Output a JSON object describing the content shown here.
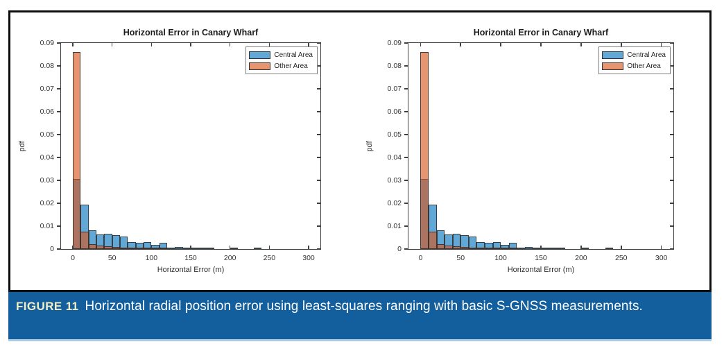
{
  "caption": {
    "label": "FIGURE 11",
    "text": "Horizontal radial position error using least-squares ranging with basic S-GNSS measurements."
  },
  "colors": {
    "caption_bg": "#135E9C",
    "caption_label": "#F1ECC6",
    "caption_underline": "#AECBE3",
    "frame_border": "#0D0D0D",
    "central_fill": "rgba(0,114,189,0.62)",
    "other_fill": "rgba(217,83,25,0.62)",
    "bar_edge": "#2D2D2D",
    "axis": "#3F3F3F"
  },
  "chart_data": [
    {
      "type": "bar",
      "subtype": "overlaid-histogram",
      "title": "Horizontal Error in Canary Wharf",
      "xlabel": "Horizontal Error (m)",
      "ylabel": "pdf",
      "xlim": [
        -15,
        315
      ],
      "ylim": [
        0,
        0.09
      ],
      "xticks": [
        0,
        50,
        100,
        150,
        200,
        250,
        300
      ],
      "yticks": [
        0,
        0.01,
        0.02,
        0.03,
        0.04,
        0.05,
        0.06,
        0.07,
        0.08,
        0.09
      ],
      "bin_width": 10,
      "bin_start": 0,
      "grid": false,
      "legend_position": "top-right",
      "series": [
        {
          "name": "Central Area",
          "values": [
            0.0305,
            0.0193,
            0.0081,
            0.0063,
            0.0068,
            0.0061,
            0.0055,
            0.003,
            0.0026,
            0.003,
            0.0019,
            0.0027,
            0.0006,
            0.001,
            0.0003,
            0.0005,
            0.0003,
            0.0002,
            0,
            0,
            0.0004,
            0,
            0,
            0.0003
          ]
        },
        {
          "name": "Other Area",
          "values": [
            0.0862,
            0.0076,
            0.0022,
            0.0014,
            0.0011,
            0.001,
            0.0004,
            0.0002,
            0.0002,
            0.0002,
            0.0001,
            0.0001,
            0,
            0,
            0,
            0,
            0,
            0,
            0,
            0,
            0,
            0,
            0,
            0
          ]
        }
      ]
    },
    {
      "type": "bar",
      "subtype": "overlaid-histogram",
      "title": "Horizontal Error in Canary Wharf",
      "xlabel": "Horizontal Error (m)",
      "ylabel": "pdf",
      "xlim": [
        -15,
        315
      ],
      "ylim": [
        0,
        0.09
      ],
      "xticks": [
        0,
        50,
        100,
        150,
        200,
        250,
        300
      ],
      "yticks": [
        0,
        0.01,
        0.02,
        0.03,
        0.04,
        0.05,
        0.06,
        0.07,
        0.08,
        0.09
      ],
      "bin_width": 10,
      "bin_start": 0,
      "grid": false,
      "legend_position": "top-right",
      "series": [
        {
          "name": "Central Area",
          "values": [
            0.0305,
            0.0193,
            0.0081,
            0.0063,
            0.0068,
            0.0061,
            0.0055,
            0.003,
            0.0026,
            0.003,
            0.0019,
            0.0027,
            0.0006,
            0.001,
            0.0003,
            0.0005,
            0.0003,
            0.0002,
            0,
            0,
            0.0004,
            0,
            0,
            0.0003
          ]
        },
        {
          "name": "Other Area",
          "values": [
            0.0862,
            0.0076,
            0.0022,
            0.0014,
            0.0011,
            0.001,
            0.0004,
            0.0002,
            0.0002,
            0.0002,
            0.0001,
            0.0001,
            0,
            0,
            0,
            0,
            0,
            0,
            0,
            0,
            0,
            0,
            0,
            0
          ]
        }
      ]
    }
  ]
}
